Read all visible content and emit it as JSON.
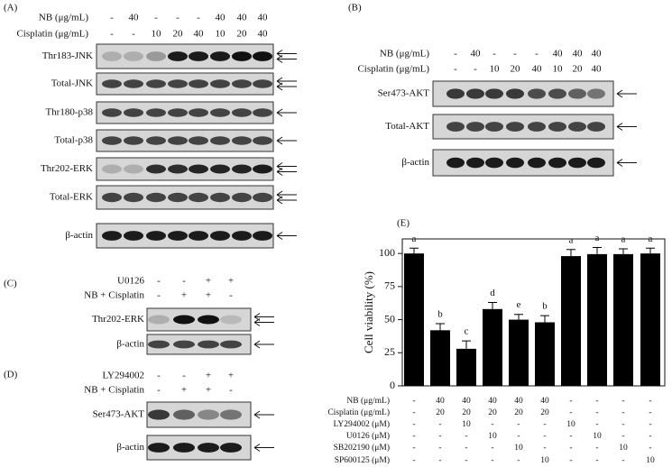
{
  "panels": {
    "A": {
      "label": "(A)",
      "conditions": [
        {
          "name": "NB (μg/mL)",
          "values": [
            "-",
            "40",
            "-",
            "-",
            "-",
            "40",
            "40",
            "40"
          ]
        },
        {
          "name": "Cisplatin (μg/mL)",
          "values": [
            "-",
            "-",
            "10",
            "20",
            "40",
            "10",
            "20",
            "40"
          ]
        }
      ],
      "blots": [
        "Thr183-JNK",
        "Total-JNK",
        "Thr180-p38",
        "Total-p38",
        "Thr202-ERK",
        "Total-ERK",
        "β-actin"
      ]
    },
    "B": {
      "label": "(B)",
      "conditions": [
        {
          "name": "NB (μg/mL)",
          "values": [
            "-",
            "40",
            "-",
            "-",
            "-",
            "40",
            "40",
            "40"
          ]
        },
        {
          "name": "Cisplatin (μg/mL)",
          "values": [
            "-",
            "-",
            "10",
            "20",
            "40",
            "10",
            "20",
            "40"
          ]
        }
      ],
      "blots": [
        "Ser473-AKT",
        "Total-AKT",
        "β-actin"
      ]
    },
    "C": {
      "label": "(C)",
      "conditions": [
        {
          "name": "U0126",
          "values": [
            "-",
            "-",
            "+",
            "+"
          ]
        },
        {
          "name": "NB + Cisplatin",
          "values": [
            "-",
            "+",
            "+",
            "-"
          ]
        }
      ],
      "blots": [
        "Thr202-ERK",
        "β-actin"
      ]
    },
    "D": {
      "label": "(D)",
      "conditions": [
        {
          "name": "LY294002",
          "values": [
            "-",
            "-",
            "+",
            "+"
          ]
        },
        {
          "name": "NB + Cisplatin",
          "values": [
            "-",
            "+",
            "+",
            "-"
          ]
        }
      ],
      "blots": [
        "Ser473-AKT",
        "β-actin"
      ]
    }
  },
  "chart_data": {
    "type": "bar",
    "label": "(E)",
    "y_label": "Cell viability (%)",
    "values": [
      100,
      42,
      28,
      58,
      50,
      48,
      98,
      99.5,
      99.5,
      100
    ],
    "errors": [
      4,
      5,
      6,
      5,
      4,
      5,
      5,
      5,
      4,
      4
    ],
    "annotations": [
      "a",
      "b",
      "c",
      "d",
      "e",
      "b",
      "a",
      "a",
      "a",
      "a"
    ],
    "color": "#000000",
    "ylim": [
      0,
      111
    ],
    "yticks": [
      0,
      25,
      50,
      75,
      100
    ],
    "treatments": [
      {
        "name": "NB (μg/mL)",
        "values": [
          "-",
          "40",
          "40",
          "40",
          "40",
          "40",
          "-",
          "-",
          "-",
          "-"
        ]
      },
      {
        "name": "Cisplatin (μg/mL)",
        "values": [
          "-",
          "20",
          "20",
          "20",
          "20",
          "20",
          "-",
          "-",
          "-",
          "-"
        ]
      },
      {
        "name": "LY294002 (μM)",
        "values": [
          "-",
          "-",
          "10",
          "-",
          "-",
          "-",
          "10",
          "-",
          "-",
          "-"
        ]
      },
      {
        "name": "U0126 (μM)",
        "values": [
          "-",
          "-",
          "-",
          "10",
          "-",
          "-",
          "-",
          "10",
          "-",
          "-"
        ]
      },
      {
        "name": "SB202190 (μM)",
        "values": [
          "-",
          "-",
          "-",
          "-",
          "10",
          "-",
          "-",
          "-",
          "10",
          "-"
        ]
      },
      {
        "name": "SP600125 (μM)",
        "values": [
          "-",
          "-",
          "-",
          "-",
          "-",
          "10",
          "-",
          "-",
          "-",
          "10"
        ]
      }
    ]
  }
}
